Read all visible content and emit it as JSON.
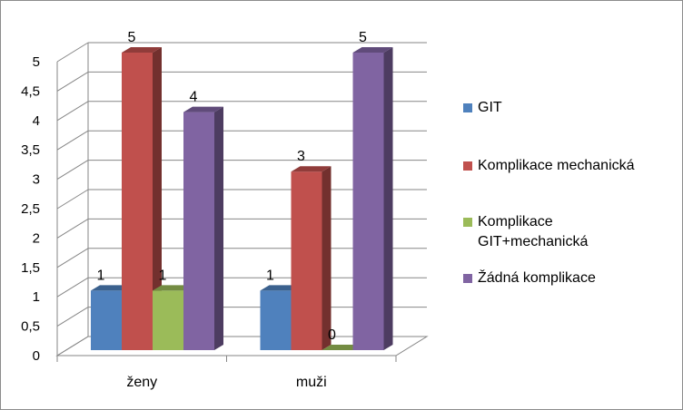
{
  "chart_data": {
    "type": "bar",
    "categories": [
      "ženy",
      "muži"
    ],
    "series": [
      {
        "name": "GIT",
        "values": [
          1,
          1
        ],
        "color": "#4f81bd"
      },
      {
        "name": "Komplikace mechanická",
        "values": [
          5,
          3
        ],
        "color": "#c0504d"
      },
      {
        "name": "Komplikace GIT+mechanická",
        "values": [
          1,
          0
        ],
        "color": "#9bbb59"
      },
      {
        "name": "Žádná komplikace",
        "values": [
          4,
          5
        ],
        "color": "#8064a2"
      }
    ],
    "ylim": [
      0,
      5
    ],
    "yticks": [
      "0",
      "0,5",
      "1",
      "1,5",
      "2",
      "2,5",
      "3",
      "3,5",
      "4",
      "4,5",
      "5"
    ],
    "grid": true,
    "three_d": true,
    "legend_position": "right",
    "data_labels": true
  },
  "legend": {
    "items": [
      {
        "label": "GIT",
        "color": "#4f81bd"
      },
      {
        "label": "Komplikace mechanická",
        "color": "#c0504d"
      },
      {
        "label": "Komplikace\nGIT+mechanická",
        "color": "#9bbb59"
      },
      {
        "label": "Žádná komplikace",
        "color": "#8064a2"
      }
    ]
  }
}
